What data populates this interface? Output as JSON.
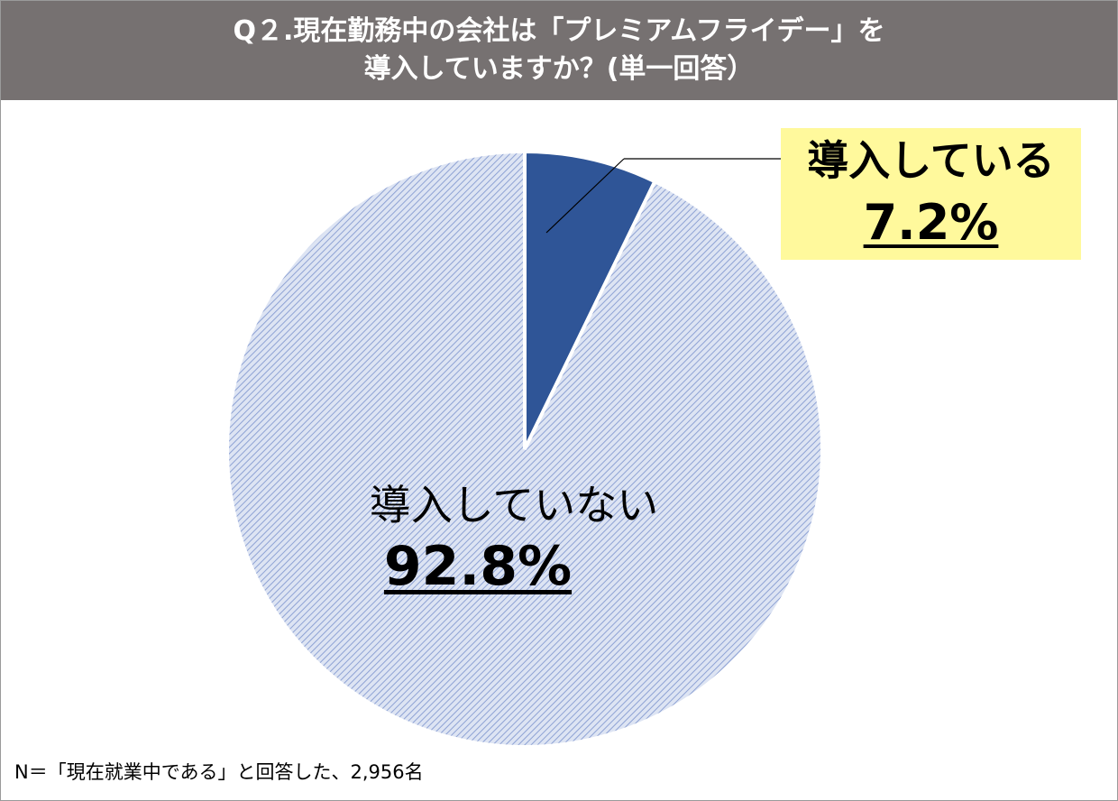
{
  "title": {
    "line1": "Q２.現在勤務中の会社は「プレミアムフライデー」を",
    "line2": "導入していますか？(単一回答）"
  },
  "chart_data": {
    "type": "pie",
    "categories": [
      "導入している",
      "導入していない"
    ],
    "values": [
      7.2,
      92.8
    ],
    "value_labels": [
      "7.2%",
      "92.8%"
    ],
    "start_angle": "12 o'clock",
    "direction": "clockwise",
    "colors": [
      "#2f5597",
      "#b4c3e6"
    ],
    "legend": "none (labels on chart)"
  },
  "labels": {
    "adopted": "導入している",
    "adopted_value": "7.2%",
    "not_adopted": "導入していない",
    "not_adopted_value": "92.8%"
  },
  "footnote": "N＝「現在就業中である」と回答した、2,956名",
  "colors": {
    "title_bg": "#767171",
    "callout_bg": "#fff99c",
    "adopted": "#2f5597",
    "not_adopted": "#b4c3e6"
  }
}
